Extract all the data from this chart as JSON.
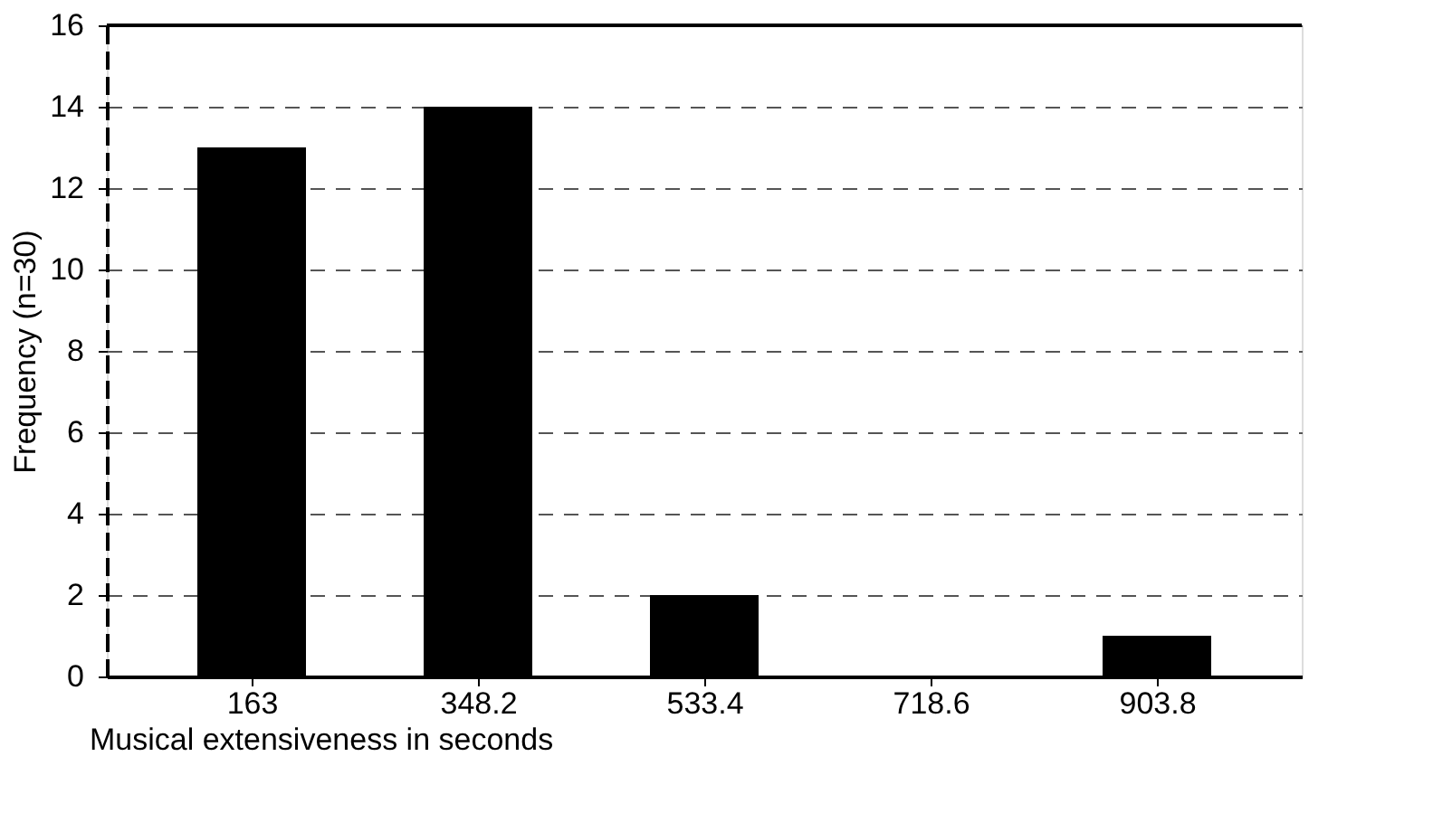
{
  "chart_data": {
    "type": "bar",
    "xlabel": "Musical extensiveness in seconds",
    "ylabel": "Frequency (n=30)",
    "categories": [
      "163",
      "348.2",
      "533.4",
      "718.6",
      "903.8"
    ],
    "values": [
      13,
      14,
      2,
      0,
      1
    ],
    "color": "#000000",
    "ylim": [
      0,
      16
    ],
    "yticks": [
      0,
      2,
      4,
      6,
      8,
      10,
      12,
      14,
      16
    ],
    "grid": "y"
  }
}
